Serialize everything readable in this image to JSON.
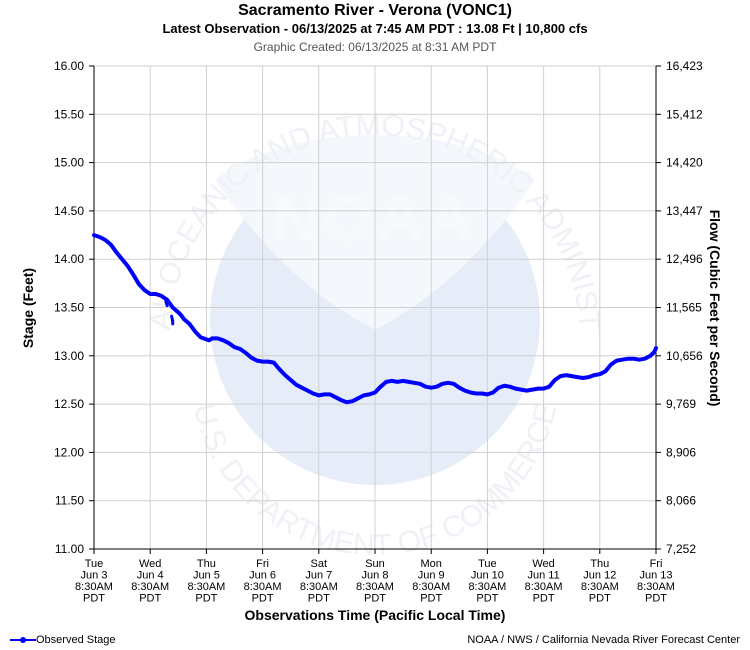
{
  "header": {
    "title": "Sacramento River - Verona (VONC1)",
    "subtitle": "Latest Observation - 06/13/2025 at 7:45 AM PDT : 13.08 Ft | 10,800 cfs",
    "created": "Graphic Created: 06/13/2025 at 8:31 AM PDT"
  },
  "footer": {
    "legend_label": "Observed Stage",
    "credit": "NOAA / NWS / California Nevada River Forecast Center"
  },
  "watermark": {
    "logo_text": "NOAA",
    "ring_top": "NATIONAL OCEANIC AND ATMOSPHERIC ADMINISTRATION",
    "ring_bottom": "U.S. DEPARTMENT OF COMMERCE"
  },
  "colors": {
    "series": "#0000ff",
    "grid": "#d0d0d0",
    "watermark": "#e7eef8"
  },
  "chart_data": {
    "type": "line",
    "xlabel": "Observations Time (Pacific Local Time)",
    "ylabel": "Stage (Feet)",
    "y2label": "Flow (Cubic Feet per Second)",
    "ylim": [
      11.0,
      16.0
    ],
    "xlim_days": [
      0,
      10
    ],
    "y_ticks": [
      "16.00",
      "15.50",
      "15.00",
      "14.50",
      "14.00",
      "13.50",
      "13.00",
      "12.50",
      "12.00",
      "11.50",
      "11.00"
    ],
    "y2_ticks": [
      "16,423",
      "15,412",
      "14,420",
      "13,447",
      "12,496",
      "11,565",
      "10,656",
      "9,769",
      "8,906",
      "8,066",
      "7,252"
    ],
    "x_ticks": [
      [
        "Tue",
        "Jun 3",
        "8:30AM",
        "PDT"
      ],
      [
        "Wed",
        "Jun 4",
        "8:30AM",
        "PDT"
      ],
      [
        "Thu",
        "Jun 5",
        "8:30AM",
        "PDT"
      ],
      [
        "Fri",
        "Jun 6",
        "8:30AM",
        "PDT"
      ],
      [
        "Sat",
        "Jun 7",
        "8:30AM",
        "PDT"
      ],
      [
        "Sun",
        "Jun 8",
        "8:30AM",
        "PDT"
      ],
      [
        "Mon",
        "Jun 9",
        "8:30AM",
        "PDT"
      ],
      [
        "Tue",
        "Jun 10",
        "8:30AM",
        "PDT"
      ],
      [
        "Wed",
        "Jun 11",
        "8:30AM",
        "PDT"
      ],
      [
        "Thu",
        "Jun 12",
        "8:30AM",
        "PDT"
      ],
      [
        "Fri",
        "Jun 13",
        "8:30AM",
        "PDT"
      ]
    ],
    "grid": true,
    "legend_position": "bottom-left",
    "series": [
      {
        "name": "Observed Stage",
        "points": [
          [
            0.0,
            14.25
          ],
          [
            0.1,
            14.23
          ],
          [
            0.2,
            14.2
          ],
          [
            0.3,
            14.15
          ],
          [
            0.4,
            14.07
          ],
          [
            0.5,
            14.0
          ],
          [
            0.6,
            13.93
          ],
          [
            0.7,
            13.84
          ],
          [
            0.8,
            13.74
          ],
          [
            0.9,
            13.68
          ],
          [
            1.0,
            13.64
          ],
          [
            1.1,
            13.64
          ],
          [
            1.2,
            13.62
          ],
          [
            1.3,
            13.58
          ],
          [
            1.4,
            13.5
          ],
          [
            1.5,
            13.45
          ],
          [
            1.55,
            13.42
          ],
          [
            1.6,
            13.38
          ],
          [
            1.7,
            13.33
          ],
          [
            1.8,
            13.25
          ],
          [
            1.9,
            13.19
          ],
          [
            2.0,
            13.17
          ],
          [
            2.05,
            13.16
          ],
          [
            2.1,
            13.18
          ],
          [
            2.2,
            13.18
          ],
          [
            2.3,
            13.16
          ],
          [
            2.4,
            13.13
          ],
          [
            2.5,
            13.09
          ],
          [
            2.6,
            13.07
          ],
          [
            2.7,
            13.03
          ],
          [
            2.8,
            12.98
          ],
          [
            2.9,
            12.95
          ],
          [
            3.0,
            12.94
          ],
          [
            3.1,
            12.94
          ],
          [
            3.2,
            12.93
          ],
          [
            3.3,
            12.86
          ],
          [
            3.4,
            12.8
          ],
          [
            3.5,
            12.75
          ],
          [
            3.6,
            12.7
          ],
          [
            3.7,
            12.67
          ],
          [
            3.8,
            12.64
          ],
          [
            3.9,
            12.61
          ],
          [
            4.0,
            12.59
          ],
          [
            4.1,
            12.6
          ],
          [
            4.2,
            12.6
          ],
          [
            4.3,
            12.57
          ],
          [
            4.4,
            12.54
          ],
          [
            4.5,
            12.52
          ],
          [
            4.6,
            12.53
          ],
          [
            4.7,
            12.56
          ],
          [
            4.8,
            12.59
          ],
          [
            4.9,
            12.6
          ],
          [
            5.0,
            12.62
          ],
          [
            5.1,
            12.68
          ],
          [
            5.2,
            12.73
          ],
          [
            5.3,
            12.74
          ],
          [
            5.4,
            12.73
          ],
          [
            5.5,
            12.74
          ],
          [
            5.6,
            12.73
          ],
          [
            5.7,
            12.72
          ],
          [
            5.8,
            12.71
          ],
          [
            5.9,
            12.68
          ],
          [
            6.0,
            12.67
          ],
          [
            6.1,
            12.68
          ],
          [
            6.2,
            12.71
          ],
          [
            6.3,
            12.72
          ],
          [
            6.4,
            12.71
          ],
          [
            6.5,
            12.67
          ],
          [
            6.6,
            12.64
          ],
          [
            6.7,
            12.62
          ],
          [
            6.8,
            12.61
          ],
          [
            6.9,
            12.61
          ],
          [
            7.0,
            12.6
          ],
          [
            7.1,
            12.62
          ],
          [
            7.2,
            12.67
          ],
          [
            7.3,
            12.69
          ],
          [
            7.4,
            12.68
          ],
          [
            7.5,
            12.66
          ],
          [
            7.6,
            12.65
          ],
          [
            7.7,
            12.64
          ],
          [
            7.8,
            12.65
          ],
          [
            7.9,
            12.66
          ],
          [
            8.0,
            12.66
          ],
          [
            8.1,
            12.68
          ],
          [
            8.2,
            12.75
          ],
          [
            8.3,
            12.79
          ],
          [
            8.4,
            12.8
          ],
          [
            8.5,
            12.79
          ],
          [
            8.6,
            12.78
          ],
          [
            8.7,
            12.77
          ],
          [
            8.8,
            12.78
          ],
          [
            8.9,
            12.8
          ],
          [
            9.0,
            12.81
          ],
          [
            9.1,
            12.84
          ],
          [
            9.2,
            12.91
          ],
          [
            9.3,
            12.95
          ],
          [
            9.4,
            12.96
          ],
          [
            9.5,
            12.97
          ],
          [
            9.6,
            12.97
          ],
          [
            9.7,
            12.96
          ],
          [
            9.8,
            12.97
          ],
          [
            9.9,
            13.0
          ],
          [
            9.97,
            13.04
          ],
          [
            10.0,
            13.08
          ]
        ],
        "gaps": [
          [
            [
              1.28,
              13.56
            ],
            [
              1.3,
              13.52
            ]
          ],
          [
            [
              1.43,
              13.48
            ],
            [
              1.47,
              13.46
            ]
          ],
          [
            [
              1.38,
              13.41
            ],
            [
              1.4,
              13.36
            ],
            [
              1.4,
              13.33
            ]
          ]
        ]
      }
    ]
  }
}
